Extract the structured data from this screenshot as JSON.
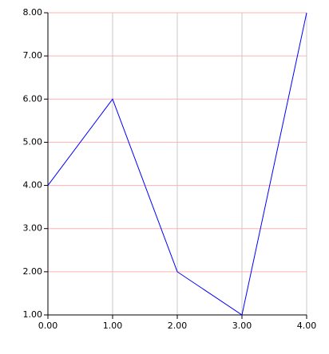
{
  "chart_data": {
    "type": "line",
    "x": [
      0,
      1,
      2,
      3,
      4
    ],
    "values": [
      4,
      6,
      2,
      1,
      8
    ],
    "color": "#0000ff",
    "xlim": [
      0,
      4
    ],
    "xticks": [
      {
        "value": 0,
        "label": "0.00"
      },
      {
        "value": 1,
        "label": "1.00"
      },
      {
        "value": 2,
        "label": "2.00"
      },
      {
        "value": 3,
        "label": "3.00"
      },
      {
        "value": 4,
        "label": "4.00"
      }
    ],
    "ylim": [
      1,
      8
    ],
    "yticks": [
      {
        "value": 1,
        "label": "1.00"
      },
      {
        "value": 2,
        "label": "2.00"
      },
      {
        "value": 3,
        "label": "3.00"
      },
      {
        "value": 4,
        "label": "4.00"
      },
      {
        "value": 5,
        "label": "5.00"
      },
      {
        "value": 6,
        "label": "6.00"
      },
      {
        "value": 7,
        "label": "7.00"
      },
      {
        "value": 8,
        "label": "8.00"
      }
    ],
    "grid": true
  }
}
